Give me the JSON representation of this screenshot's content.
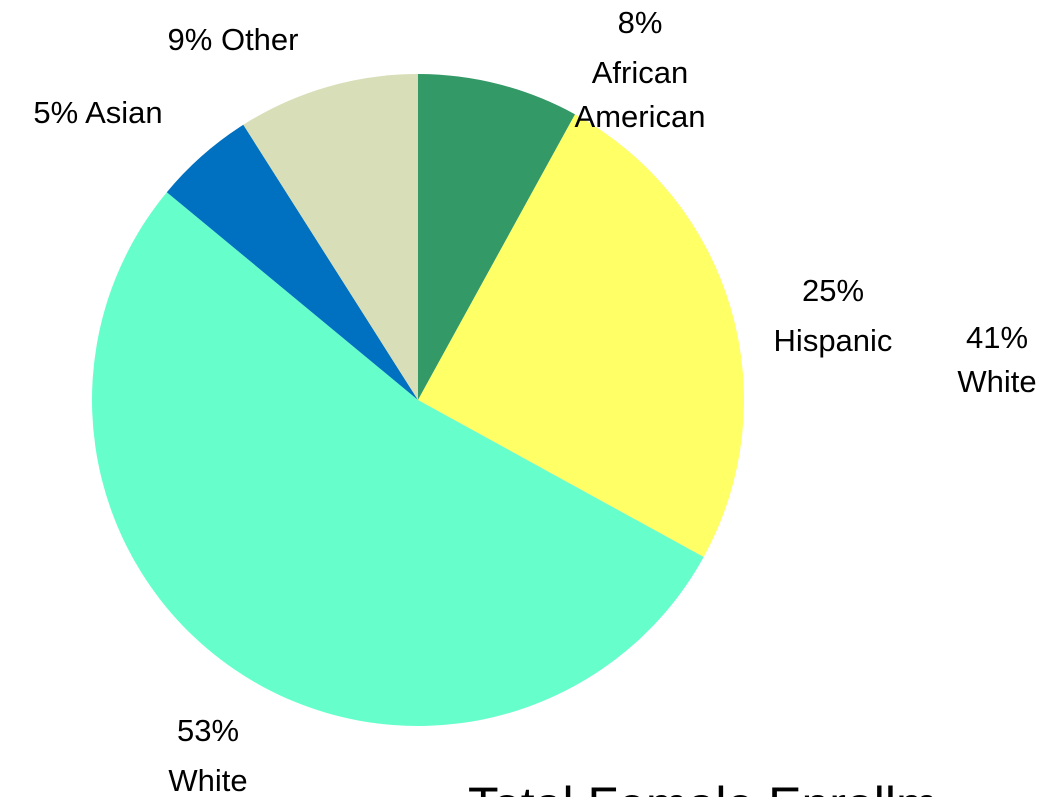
{
  "chart_data": {
    "type": "pie",
    "title": "Total Female Enrollm",
    "categories": [
      "African American",
      "Hispanic",
      "White",
      "Asian",
      "Other"
    ],
    "values": [
      8,
      25,
      53,
      5,
      9
    ],
    "value_labels": [
      "8%",
      "25%",
      "53%",
      "5%",
      "9%"
    ],
    "colors": [
      "#339966",
      "#ffff66",
      "#66ffcc",
      "#0070c0",
      "#d8dfb8"
    ],
    "annotations": [
      "41% White"
    ]
  }
}
